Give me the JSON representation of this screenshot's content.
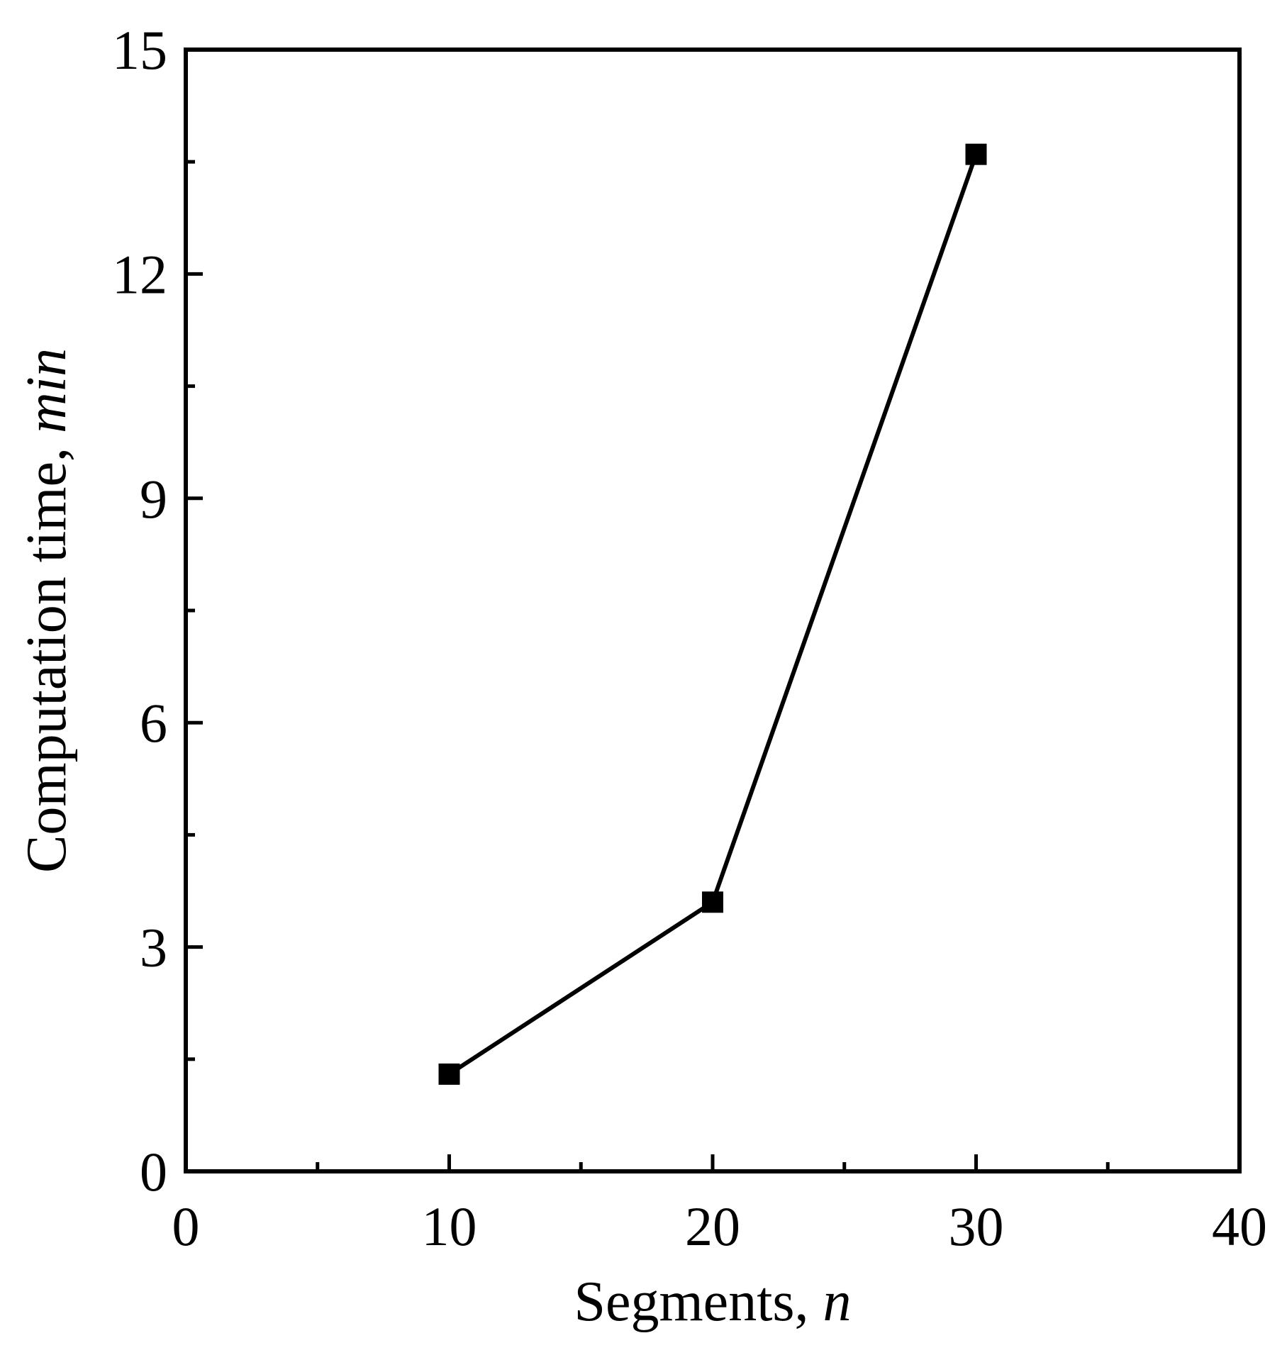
{
  "chart_data": {
    "type": "line",
    "title": "",
    "xlabel": {
      "text": "Segments, ",
      "italic": "n"
    },
    "ylabel": {
      "text": "Computation time, ",
      "italic": "min"
    },
    "xlim": [
      0,
      40
    ],
    "ylim": [
      0,
      15
    ],
    "x_ticks": [
      0,
      10,
      20,
      30,
      40
    ],
    "y_ticks": [
      0,
      3,
      6,
      9,
      12,
      15
    ],
    "x_tick_labels": [
      "0",
      "10",
      "20",
      "30",
      "40"
    ],
    "y_tick_labels": [
      "0",
      "3",
      "6",
      "9",
      "12",
      "15"
    ],
    "grid": false,
    "legend": "none",
    "series": [
      {
        "marker": "square",
        "color": "#000000",
        "x": [
          10,
          20,
          30
        ],
        "y": [
          1.3,
          3.6,
          13.6
        ]
      }
    ]
  }
}
